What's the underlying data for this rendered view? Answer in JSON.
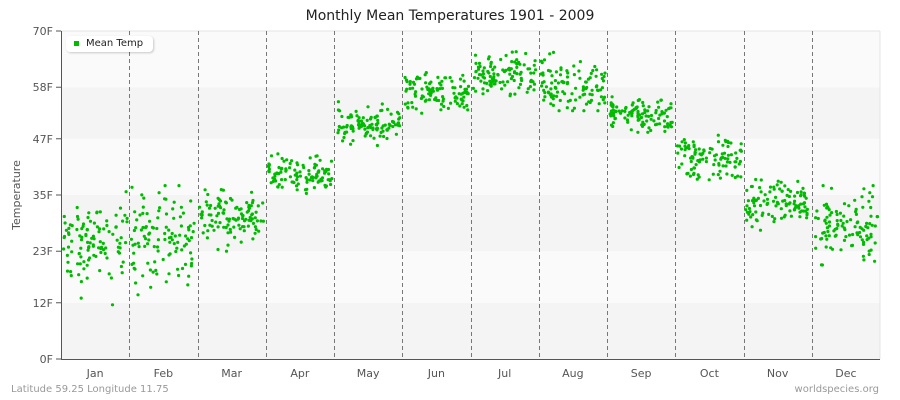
{
  "title": "Monthly Mean Temperatures 1901 - 2009",
  "footer_left": "Latitude 59.25 Longitude 11.75",
  "footer_right": "worldspecies.org",
  "legend": {
    "label": "Mean Temp",
    "color": "#00bb00"
  },
  "chart_data": {
    "type": "scatter",
    "title": "Monthly Mean Temperatures 1901 - 2009",
    "xlabel": "",
    "ylabel": "Temperature",
    "ylim": [
      0,
      70
    ],
    "yticks": [
      "0F",
      "12F",
      "23F",
      "35F",
      "47F",
      "58F",
      "70F"
    ],
    "ytick_values": [
      0,
      12,
      23,
      35,
      47,
      58,
      70
    ],
    "categories": [
      "Jan",
      "Feb",
      "Mar",
      "Apr",
      "May",
      "Jun",
      "Jul",
      "Aug",
      "Sep",
      "Oct",
      "Nov",
      "Dec"
    ],
    "series": [
      {
        "name": "Mean Temp",
        "color": "#00bb00",
        "monthly_mean": [
          24.5,
          25.5,
          30.5,
          39.5,
          49.5,
          57.0,
          60.5,
          58.5,
          52.0,
          43.0,
          33.5,
          28.5
        ],
        "monthly_min": [
          9,
          8,
          23,
          34,
          44,
          51,
          55,
          53,
          47,
          36,
          27,
          16
        ],
        "monthly_max": [
          36,
          37,
          38,
          44,
          55,
          63,
          67,
          66,
          57,
          50,
          39,
          37
        ],
        "points_per_month": 109
      }
    ],
    "legend_position": "top-left",
    "grid": "alternating horizontal bands, dashed vertical month separators"
  }
}
